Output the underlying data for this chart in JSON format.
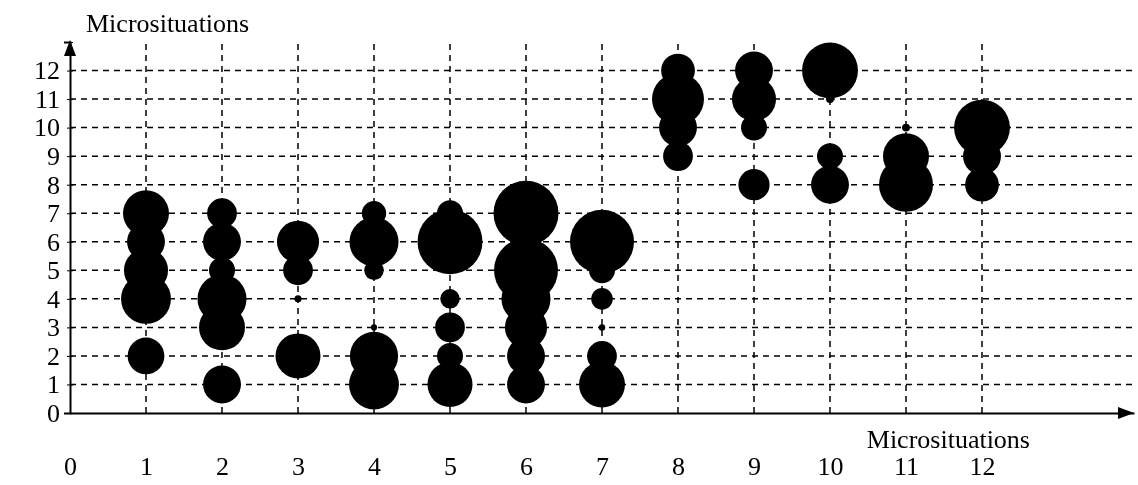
{
  "chart_data": {
    "type": "bubble",
    "xlabel": "Microsituations",
    "ylabel": "Microsituations",
    "xlim": [
      0,
      14
    ],
    "ylim": [
      0,
      13
    ],
    "xticks": [
      0,
      1,
      2,
      3,
      4,
      5,
      6,
      7,
      8,
      9,
      10,
      11,
      12
    ],
    "yticks": [
      0,
      1,
      2,
      3,
      4,
      5,
      6,
      7,
      8,
      9,
      10,
      11,
      12,
      {
        "value": 13,
        "label": null
      }
    ],
    "grid": true,
    "color": "#000000",
    "x": [
      1,
      1,
      1,
      1,
      1,
      2,
      2,
      2,
      2,
      2,
      2,
      3,
      3,
      3,
      3,
      4,
      4,
      4,
      4,
      4,
      4,
      5,
      5,
      5,
      5,
      5,
      5,
      6,
      6,
      6,
      6,
      6,
      6,
      7,
      7,
      7,
      7,
      7,
      7,
      8,
      8,
      8,
      8,
      9,
      9,
      9,
      9,
      10,
      10,
      10,
      10,
      11,
      11,
      11,
      12,
      12,
      12
    ],
    "values": [
      7,
      6,
      5,
      4,
      2,
      7,
      6,
      5,
      4,
      3,
      1,
      6,
      5,
      4,
      2,
      7,
      6,
      5,
      3,
      2,
      1,
      7,
      6,
      4,
      3,
      2,
      1,
      7,
      5,
      4,
      3,
      2,
      1,
      6,
      5,
      4,
      3,
      2,
      1,
      12,
      11,
      10,
      9,
      12,
      11,
      10,
      8,
      12,
      11,
      9,
      8,
      10,
      9,
      8,
      10,
      9,
      8
    ],
    "sizes": [
      0.5,
      0.34,
      0.46,
      0.59,
      0.32,
      0.21,
      0.34,
      0.16,
      0.57,
      0.5,
      0.34,
      0.42,
      0.21,
      0.012,
      0.48,
      0.14,
      0.57,
      0.09,
      0.009,
      0.55,
      0.59,
      0.16,
      1,
      0.09,
      0.21,
      0.16,
      0.48,
      1,
      0.97,
      0.57,
      0.42,
      0.34,
      0.34,
      0.97,
      0.16,
      0.11,
      0.01,
      0.21,
      0.5,
      0.27,
      0.64,
      0.34,
      0.21,
      0.34,
      0.46,
      0.16,
      0.23,
      0.74,
      0.015,
      0.16,
      0.34,
      0.015,
      0.5,
      0.69,
      0.74,
      0.34,
      0.27
    ]
  }
}
